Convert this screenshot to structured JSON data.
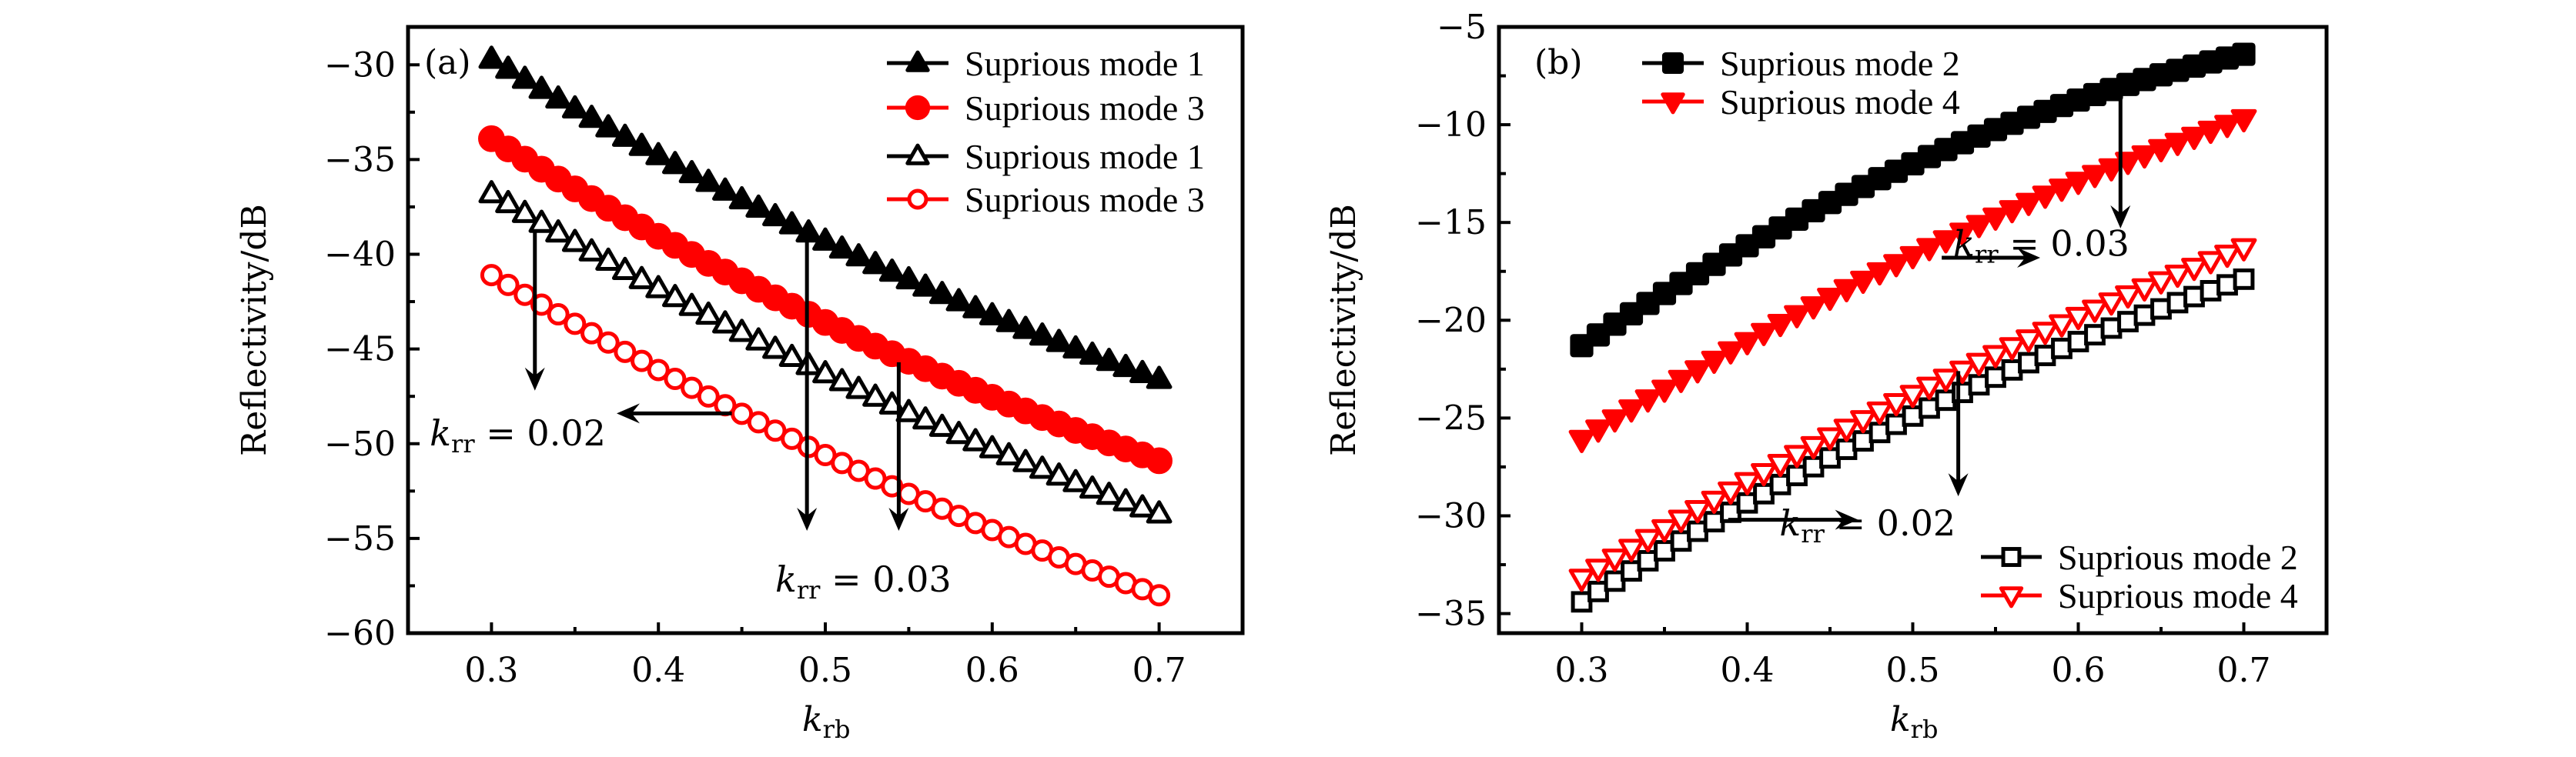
{
  "chart_data": [
    {
      "type": "scatter",
      "panel_label": "(a)",
      "xlabel": "k_rb",
      "xlabel_main": "k",
      "xlabel_sub": "rb",
      "ylabel": "Reflectivity/dB",
      "xlim": [
        0.25,
        0.75
      ],
      "ylim": [
        -60,
        -28
      ],
      "xticks": [
        0.3,
        0.4,
        0.5,
        0.6,
        0.7
      ],
      "xtick_labels": [
        "0.3",
        "0.4",
        "0.5",
        "0.6",
        "0.7"
      ],
      "xminor_step": 0.05,
      "yticks": [
        -30,
        -35,
        -40,
        -45,
        -50,
        -55,
        -60
      ],
      "ytick_labels": [
        "−30",
        "−35",
        "−40",
        "−45",
        "−50",
        "−55",
        "−60"
      ],
      "yminor_step": 2.5,
      "grid": false,
      "legend_position": "top-right",
      "x": [
        0.3,
        0.31,
        0.32,
        0.33,
        0.34,
        0.35,
        0.36,
        0.37,
        0.38,
        0.39,
        0.4,
        0.41,
        0.42,
        0.43,
        0.44,
        0.45,
        0.46,
        0.47,
        0.48,
        0.49,
        0.5,
        0.51,
        0.52,
        0.53,
        0.54,
        0.55,
        0.56,
        0.57,
        0.58,
        0.59,
        0.6,
        0.61,
        0.62,
        0.63,
        0.64,
        0.65,
        0.66,
        0.67,
        0.68,
        0.69,
        0.7
      ],
      "series": [
        {
          "name": "Suprious mode 1",
          "k_rr": 0.03,
          "marker": "triangle-up",
          "filled": true,
          "color": "#000000",
          "values": [
            -29.7,
            -30.23,
            -30.76,
            -31.29,
            -31.8,
            -32.32,
            -32.82,
            -33.32,
            -33.82,
            -34.3,
            -34.79,
            -35.26,
            -35.74,
            -36.2,
            -36.66,
            -37.12,
            -37.56,
            -38.01,
            -38.44,
            -38.87,
            -39.3,
            -39.72,
            -40.13,
            -40.54,
            -40.94,
            -41.34,
            -41.73,
            -42.12,
            -42.5,
            -42.87,
            -43.24,
            -43.6,
            -43.96,
            -44.31,
            -44.65,
            -44.99,
            -45.32,
            -45.65,
            -45.97,
            -46.29,
            -46.6
          ]
        },
        {
          "name": "Suprious mode 3",
          "k_rr": 0.03,
          "marker": "circle",
          "filled": true,
          "color": "#ff0000",
          "values": [
            -33.9,
            -34.44,
            -34.98,
            -35.51,
            -36.03,
            -36.55,
            -37.06,
            -37.57,
            -38.07,
            -38.56,
            -39.05,
            -39.53,
            -40.01,
            -40.48,
            -40.94,
            -41.4,
            -41.85,
            -42.3,
            -42.74,
            -43.17,
            -43.6,
            -44.02,
            -44.44,
            -44.85,
            -45.25,
            -45.65,
            -46.04,
            -46.43,
            -46.81,
            -47.18,
            -47.55,
            -47.91,
            -48.27,
            -48.62,
            -48.96,
            -49.3,
            -49.63,
            -49.96,
            -50.28,
            -50.59,
            -50.9
          ]
        },
        {
          "name": "Suprious mode 1",
          "k_rr": 0.02,
          "marker": "triangle-up",
          "filled": false,
          "color": "#000000",
          "values": [
            -36.8,
            -37.32,
            -37.84,
            -38.36,
            -38.87,
            -39.37,
            -39.87,
            -40.36,
            -40.85,
            -41.33,
            -41.81,
            -42.28,
            -42.75,
            -43.21,
            -43.67,
            -44.12,
            -44.57,
            -45.01,
            -45.44,
            -45.87,
            -46.3,
            -46.72,
            -47.13,
            -47.54,
            -47.95,
            -48.35,
            -48.74,
            -49.13,
            -49.51,
            -49.89,
            -50.26,
            -50.63,
            -50.99,
            -51.34,
            -51.7,
            -52.05,
            -52.39,
            -52.72,
            -53.06,
            -53.38,
            -53.7
          ]
        },
        {
          "name": "Suprious mode 3",
          "k_rr": 0.02,
          "marker": "circle",
          "filled": false,
          "color": "#ff0000",
          "values": [
            -41.1,
            -41.62,
            -42.14,
            -42.66,
            -43.17,
            -43.67,
            -44.17,
            -44.66,
            -45.15,
            -45.63,
            -46.11,
            -46.58,
            -47.05,
            -47.51,
            -47.97,
            -48.42,
            -48.87,
            -49.31,
            -49.74,
            -50.17,
            -50.6,
            -51.02,
            -51.43,
            -51.84,
            -52.25,
            -52.65,
            -53.04,
            -53.43,
            -53.81,
            -54.19,
            -54.56,
            -54.93,
            -55.29,
            -55.64,
            -56.0,
            -56.35,
            -56.69,
            -57.02,
            -57.36,
            -57.68,
            -58.0
          ]
        }
      ],
      "annotations": [
        {
          "text_main": "k",
          "text_sub": "rr",
          "text_rest": " = 0.02",
          "label": "k_rr = 0.02",
          "at": [
            0.263,
            -50.1
          ],
          "arrows": [
            {
              "from": [
                0.326,
                -38.8
              ],
              "to": [
                0.326,
                -47.2
              ]
            },
            {
              "from": [
                0.444,
                -48.4
              ],
              "to": [
                0.375,
                -48.4
              ]
            }
          ]
        },
        {
          "text_main": "k",
          "text_sub": "rr",
          "text_rest": " = 0.03",
          "label": "k_rr = 0.03",
          "at": [
            0.47,
            -57.8
          ],
          "arrows": [
            {
              "from": [
                0.489,
                -38.8
              ],
              "to": [
                0.489,
                -54.6
              ]
            },
            {
              "from": [
                0.544,
                -45.7
              ],
              "to": [
                0.544,
                -54.6
              ]
            }
          ]
        }
      ]
    },
    {
      "type": "scatter",
      "panel_label": "(b)",
      "xlabel": "k_rb",
      "xlabel_main": "k",
      "xlabel_sub": "rb",
      "ylabel": "Reflectivity/dB",
      "xlim": [
        0.25,
        0.75
      ],
      "ylim": [
        -36,
        -5
      ],
      "xticks": [
        0.3,
        0.4,
        0.5,
        0.6,
        0.7
      ],
      "xtick_labels": [
        "0.3",
        "0.4",
        "0.5",
        "0.6",
        "0.7"
      ],
      "xminor_step": 0.05,
      "yticks": [
        -5,
        -10,
        -15,
        -20,
        -25,
        -30,
        -35
      ],
      "ytick_labels": [
        "−5",
        "−10",
        "−15",
        "−20",
        "−25",
        "−30",
        "−35"
      ],
      "yminor_step": 2.5,
      "grid": false,
      "legend_position": "top-left and bottom-right",
      "x": [
        0.3,
        0.31,
        0.32,
        0.33,
        0.34,
        0.35,
        0.36,
        0.37,
        0.38,
        0.39,
        0.4,
        0.41,
        0.42,
        0.43,
        0.44,
        0.45,
        0.46,
        0.47,
        0.48,
        0.49,
        0.5,
        0.51,
        0.52,
        0.53,
        0.54,
        0.55,
        0.56,
        0.57,
        0.58,
        0.59,
        0.6,
        0.61,
        0.62,
        0.63,
        0.64,
        0.65,
        0.66,
        0.67,
        0.68,
        0.69,
        0.7
      ],
      "series": [
        {
          "name": "Suprious mode 2",
          "k_rr": 0.03,
          "marker": "square",
          "filled": true,
          "color": "#000000",
          "legend_group": "top",
          "values": [
            -21.3,
            -20.75,
            -20.2,
            -19.67,
            -19.14,
            -18.63,
            -18.12,
            -17.62,
            -17.14,
            -16.66,
            -16.19,
            -15.73,
            -15.28,
            -14.83,
            -14.4,
            -13.98,
            -13.56,
            -13.16,
            -12.76,
            -12.38,
            -12.0,
            -11.63,
            -11.27,
            -10.92,
            -10.58,
            -10.25,
            -9.93,
            -9.62,
            -9.32,
            -9.02,
            -8.74,
            -8.46,
            -8.2,
            -7.94,
            -7.69,
            -7.45,
            -7.22,
            -7.0,
            -6.79,
            -6.59,
            -6.4
          ]
        },
        {
          "name": "Suprious mode 4",
          "k_rr": 0.03,
          "marker": "triangle-down",
          "filled": true,
          "color": "#ff0000",
          "legend_group": "top",
          "values": [
            -26.1,
            -25.57,
            -25.05,
            -24.54,
            -24.03,
            -23.53,
            -23.03,
            -22.54,
            -22.05,
            -21.57,
            -21.1,
            -20.63,
            -20.17,
            -19.72,
            -19.27,
            -18.83,
            -18.39,
            -17.96,
            -17.53,
            -17.11,
            -16.7,
            -16.29,
            -15.89,
            -15.5,
            -15.11,
            -14.73,
            -14.35,
            -13.98,
            -13.61,
            -13.25,
            -12.9,
            -12.55,
            -12.21,
            -11.88,
            -11.55,
            -11.23,
            -10.91,
            -10.6,
            -10.29,
            -9.99,
            -9.7
          ]
        },
        {
          "name": "Suprious mode 2",
          "k_rr": 0.02,
          "marker": "square",
          "filled": false,
          "color": "#000000",
          "legend_group": "bottom",
          "values": [
            -34.4,
            -33.87,
            -33.34,
            -32.82,
            -32.3,
            -31.79,
            -31.29,
            -30.79,
            -30.3,
            -29.82,
            -29.34,
            -28.87,
            -28.4,
            -27.94,
            -27.49,
            -27.04,
            -26.6,
            -26.17,
            -25.74,
            -25.32,
            -24.9,
            -24.49,
            -24.09,
            -23.69,
            -23.3,
            -22.91,
            -22.54,
            -22.17,
            -21.8,
            -21.44,
            -21.09,
            -20.74,
            -20.4,
            -20.07,
            -19.74,
            -19.42,
            -19.1,
            -18.79,
            -18.49,
            -18.19,
            -17.9
          ]
        },
        {
          "name": "Suprious mode 4",
          "k_rr": 0.02,
          "marker": "triangle-down",
          "filled": false,
          "color": "#ff0000",
          "legend_group": "bottom",
          "values": [
            -33.2,
            -32.69,
            -32.17,
            -31.67,
            -31.17,
            -30.67,
            -30.18,
            -29.69,
            -29.21,
            -28.74,
            -28.26,
            -27.8,
            -27.33,
            -26.87,
            -26.42,
            -25.97,
            -25.53,
            -25.09,
            -24.65,
            -24.22,
            -23.8,
            -23.38,
            -22.97,
            -22.56,
            -22.16,
            -21.76,
            -21.36,
            -20.96,
            -20.57,
            -20.19,
            -19.81,
            -19.44,
            -19.07,
            -18.71,
            -18.35,
            -17.99,
            -17.65,
            -17.3,
            -16.96,
            -16.63,
            -16.3
          ]
        }
      ],
      "annotations": [
        {
          "text_main": "k",
          "text_sub": "rr",
          "text_rest": " = 0.03",
          "label": "k_rr = 0.03",
          "at": [
            0.5245,
            -16.7
          ],
          "arrows": [
            {
              "from": [
                0.6255,
                -8.7
              ],
              "to": [
                0.6255,
                -15.3
              ]
            },
            {
              "from": [
                0.5175,
                -16.8
              ],
              "to": [
                0.577,
                -16.8
              ]
            }
          ]
        },
        {
          "text_main": "k",
          "text_sub": "rr",
          "text_rest": " = 0.02",
          "label": "k_rr = 0.02",
          "at": [
            0.4195,
            -31.0
          ],
          "arrows": [
            {
              "from": [
                0.5275,
                -22.6
              ],
              "to": [
                0.5275,
                -29.0
              ]
            },
            {
              "from": [
                0.3885,
                -30.2
              ],
              "to": [
                0.467,
                -30.2
              ]
            }
          ]
        }
      ]
    }
  ]
}
